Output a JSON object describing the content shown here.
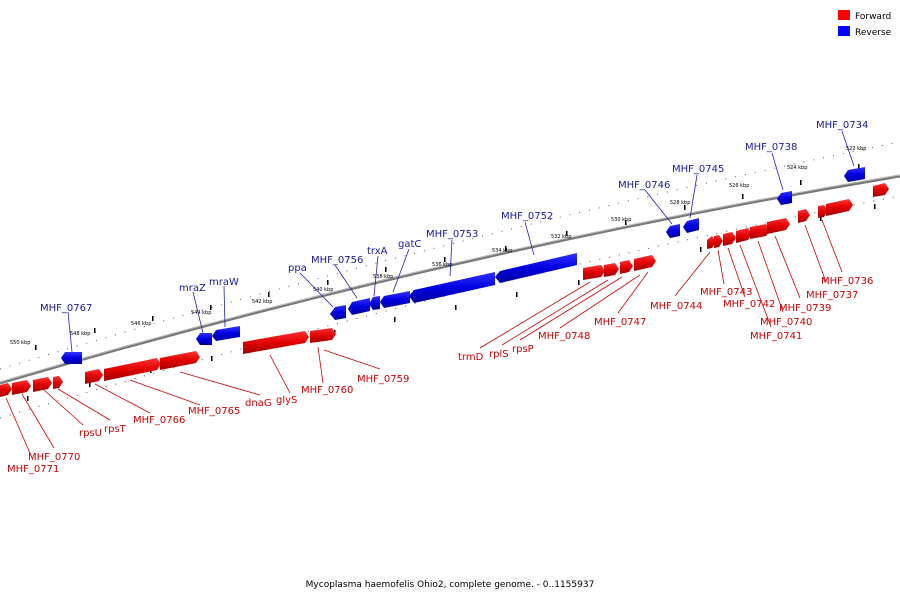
{
  "caption": "Mycoplasma haemofelis Ohio2, complete genome. - 0..1155937",
  "colors": {
    "forward": "#ff0000",
    "reverse": "#0000ff",
    "forward_label": "#cc0000",
    "reverse_label": "#1a1a99",
    "backbone": "#777777"
  },
  "legend": [
    {
      "label": "Forward",
      "color": "#ff0000"
    },
    {
      "label": "Reverse",
      "color": "#0000ff"
    }
  ],
  "ticks": [
    "550 kbp",
    "548 kbp",
    "546 kbp",
    "544 kbp",
    "542 kbp",
    "540 kbp",
    "538 kbp",
    "536 kbp",
    "534 kbp",
    "532 kbp",
    "530 kbp",
    "528 kbp",
    "526 kbp",
    "524 kbp",
    "522 kbp"
  ],
  "reverse_genes": [
    "MHF_0767",
    "mraZ",
    "mraW",
    "ppa",
    "MHF_0756",
    "trxA",
    "gatC",
    "MHF_0753",
    "MHF_0752",
    "MHF_0746",
    "MHF_0745",
    "MHF_0738",
    "MHF_0734"
  ],
  "forward_genes": [
    "MHF_0771",
    "MHF_0770",
    "rpsU",
    "rpsT",
    "MHF_0766",
    "MHF_0765",
    "dnaG",
    "glyS",
    "MHF_0760",
    "MHF_0759",
    "trmD",
    "rplS",
    "rpsP",
    "MHF_0748",
    "MHF_0747",
    "MHF_0744",
    "MHF_0743",
    "MHF_0742",
    "MHF_0741",
    "MHF_0740",
    "MHF_0739",
    "MHF_0737",
    "MHF_0736"
  ]
}
